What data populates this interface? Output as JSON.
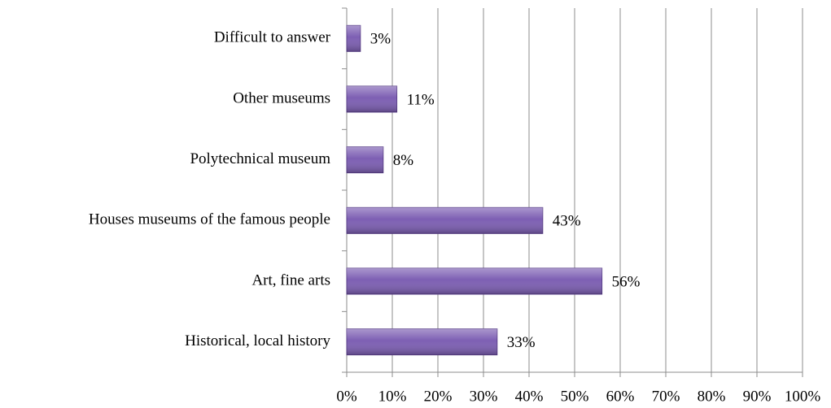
{
  "chart_data": {
    "type": "barh",
    "categories": [
      "Historical, local history",
      "Art, fine arts",
      "Houses museums of the famous people",
      "Polytechnical museum",
      "Other museums",
      "Difficult to answer"
    ],
    "values": [
      33,
      56,
      43,
      8,
      11,
      3
    ],
    "value_labels": [
      "33%",
      "56%",
      "43%",
      "8%",
      "11%",
      "3%"
    ],
    "color": "#7d5fb3",
    "xlim": [
      0,
      100
    ],
    "xticks": [
      {
        "value": 0,
        "label": "0%"
      },
      {
        "value": 10,
        "label": "10%"
      },
      {
        "value": 20,
        "label": "20%"
      },
      {
        "value": 30,
        "label": "30%"
      },
      {
        "value": 40,
        "label": "40%"
      },
      {
        "value": 50,
        "label": "50%"
      },
      {
        "value": 60,
        "label": "60%"
      },
      {
        "value": 70,
        "label": "70%"
      },
      {
        "value": 80,
        "label": "80%"
      },
      {
        "value": 90,
        "label": "90%"
      },
      {
        "value": 100,
        "label": "100%"
      }
    ],
    "grid": true
  }
}
